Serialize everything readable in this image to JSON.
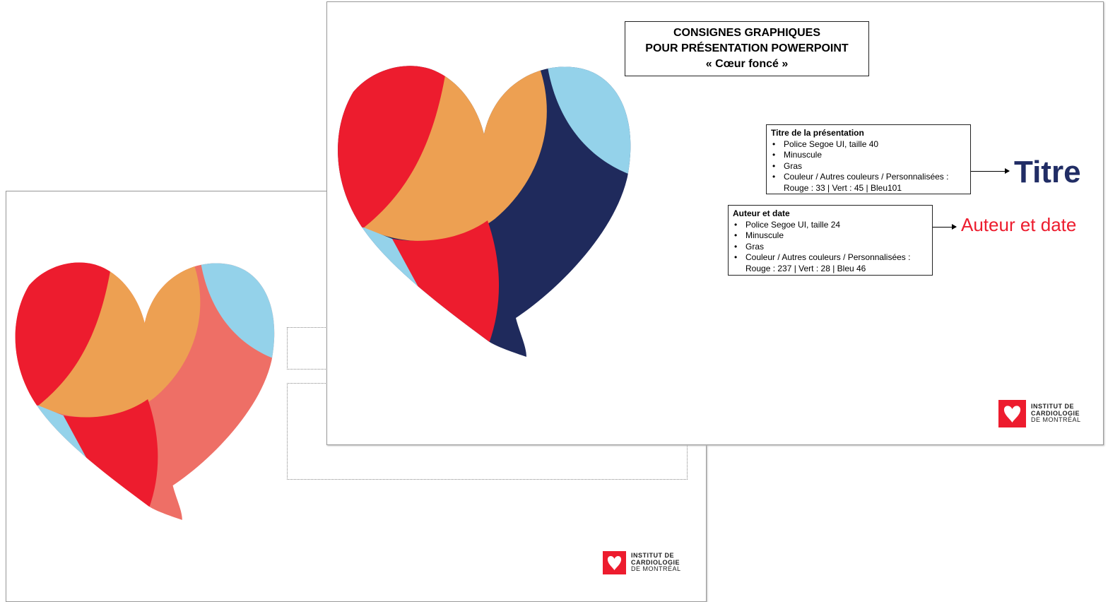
{
  "title_box": {
    "lines": [
      "CONSIGNES GRAPHIQUES",
      "POUR PRÉSENTATION POWERPOINT",
      "« Cœur foncé »"
    ]
  },
  "specs": [
    {
      "heading": "Titre de la présentation",
      "bullets": [
        "Police Segoe UI, taille 40",
        "Minuscule",
        "Gras",
        "Couleur / Autres couleurs / Personnalisées :"
      ],
      "detail": "Rouge : 33 | Vert : 45 | Bleu101"
    },
    {
      "heading": "Auteur et date",
      "bullets": [
        "Police Segoe UI, taille 24",
        "Minuscule",
        "Gras",
        "Couleur / Autres couleurs / Personnalisées :"
      ],
      "detail": "Rouge : 237 | Vert : 28 | Bleu 46"
    }
  ],
  "samples": {
    "title": "Titre",
    "author": "Auteur et date"
  },
  "logo": {
    "lines": [
      "INSTITUT DE",
      "CARDIOLOGIE",
      "DE MONTRÉAL"
    ]
  }
}
